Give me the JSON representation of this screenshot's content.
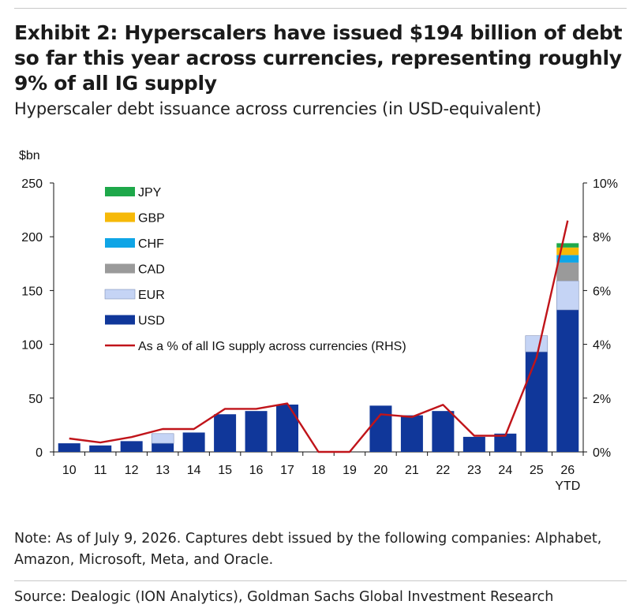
{
  "title": "Exhibit 2: Hyperscalers have issued $194 billion of debt so far this year across currencies, representing roughly 9% of all IG supply",
  "subtitle": "Hyperscaler debt issuance across currencies (in USD-equivalent)",
  "note": "Note: As of July 9, 2026. Captures debt issued by the following companies: Alphabet, Amazon, Microsoft, Meta, and Oracle.",
  "source": "Source: Dealogic (ION Analytics), Goldman Sachs Global Investment Research",
  "chart_data": {
    "type": "bar",
    "stacked": true,
    "ylabel_left": "$bn",
    "ylim_left": [
      0,
      250
    ],
    "yticks_left": [
      "0",
      "50",
      "100",
      "150",
      "200",
      "250"
    ],
    "ylim_right": [
      0,
      10
    ],
    "yticks_right": [
      "0%",
      "2%",
      "4%",
      "6%",
      "8%",
      "10%"
    ],
    "categories": [
      "10",
      "11",
      "12",
      "13",
      "14",
      "15",
      "16",
      "17",
      "18",
      "19",
      "20",
      "21",
      "22",
      "23",
      "24",
      "25",
      "26"
    ],
    "category_sublabels": {
      "26": "YTD"
    },
    "legend_position": "top-left",
    "series": [
      {
        "name": "USD",
        "color": "#10379a",
        "axis": "left",
        "values": [
          8,
          6,
          10,
          8,
          18,
          35,
          38,
          44,
          0,
          0,
          43,
          34,
          38,
          14,
          17,
          93,
          132
        ]
      },
      {
        "name": "EUR",
        "color": "#c5d4f5",
        "axis": "left",
        "values": [
          0,
          0,
          0,
          9,
          0,
          0,
          0,
          0,
          0,
          0,
          0,
          0,
          0,
          0,
          0,
          15,
          27
        ]
      },
      {
        "name": "CAD",
        "color": "#9a9a9a",
        "axis": "left",
        "values": [
          0,
          0,
          0,
          0,
          0,
          0,
          0,
          0,
          0,
          0,
          0,
          0,
          0,
          0,
          0,
          0,
          17
        ]
      },
      {
        "name": "CHF",
        "color": "#0fa5e6",
        "axis": "left",
        "values": [
          0,
          0,
          0,
          0,
          0,
          0,
          0,
          0,
          0,
          0,
          0,
          0,
          0,
          0,
          0,
          0,
          7
        ]
      },
      {
        "name": "GBP",
        "color": "#f6b908",
        "axis": "left",
        "values": [
          0,
          0,
          0,
          0,
          0,
          0,
          0,
          0,
          0,
          0,
          0,
          0,
          0,
          0,
          0,
          0,
          7
        ]
      },
      {
        "name": "JPY",
        "color": "#1ea84a",
        "axis": "left",
        "values": [
          0,
          0,
          0,
          0,
          0,
          0,
          0,
          0,
          0,
          0,
          0,
          0,
          0,
          0,
          0,
          0,
          4
        ]
      }
    ],
    "line": {
      "name": "As a % of all IG supply across currencies (RHS)",
      "color": "#c0141a",
      "axis": "right",
      "values": [
        0.5,
        0.35,
        0.55,
        0.85,
        0.85,
        1.6,
        1.6,
        1.8,
        0,
        0,
        1.4,
        1.3,
        1.75,
        0.6,
        0.6,
        3.5,
        8.6
      ]
    }
  }
}
